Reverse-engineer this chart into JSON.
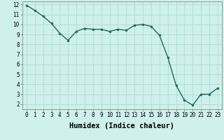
{
  "x": [
    0,
    1,
    2,
    3,
    4,
    5,
    6,
    7,
    8,
    9,
    10,
    11,
    12,
    13,
    14,
    15,
    16,
    17,
    18,
    19,
    20,
    21,
    22,
    23
  ],
  "y": [
    11.9,
    11.4,
    10.8,
    10.1,
    9.1,
    8.4,
    9.3,
    9.6,
    9.5,
    9.5,
    9.3,
    9.5,
    9.4,
    9.9,
    10.0,
    9.8,
    8.9,
    6.7,
    3.9,
    2.4,
    1.9,
    3.0,
    3.0,
    3.6
  ],
  "line_color": "#1a6b5a",
  "marker_color": "#1a6b5a",
  "bg_color": "#cff0ec",
  "grid_color": "#aaddd8",
  "xlabel": "Humidex (Indice chaleur)",
  "xlim": [
    -0.5,
    23.5
  ],
  "ylim": [
    1.5,
    12.3
  ],
  "yticks": [
    2,
    3,
    4,
    5,
    6,
    7,
    8,
    9,
    10,
    11,
    12
  ],
  "xticks": [
    0,
    1,
    2,
    3,
    4,
    5,
    6,
    7,
    8,
    9,
    10,
    11,
    12,
    13,
    14,
    15,
    16,
    17,
    18,
    19,
    20,
    21,
    22,
    23
  ],
  "tick_label_fontsize": 5.5,
  "xlabel_fontsize": 7.5
}
